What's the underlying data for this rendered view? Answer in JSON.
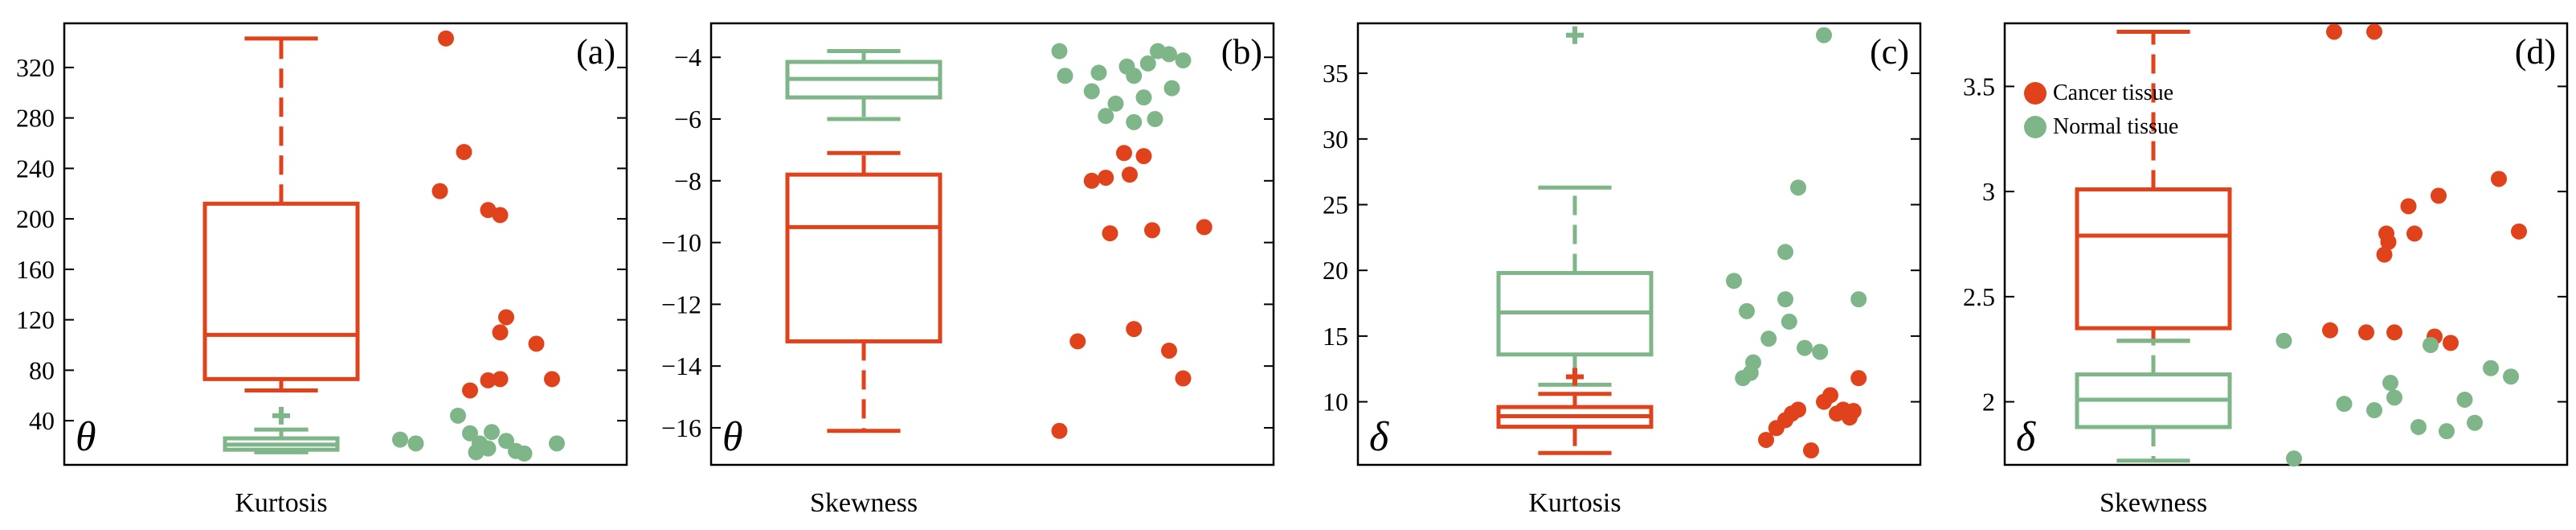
{
  "colors": {
    "cancer": "#E0421B",
    "normal": "#7FB689",
    "axis": "#000000"
  },
  "chart_data": [
    {
      "type": "box+scatter",
      "panel_label": "(a)",
      "xlabel": "Kurtosis",
      "ylabel": "θ",
      "ylim": [
        5,
        355
      ],
      "yticks": [
        40,
        80,
        120,
        160,
        200,
        240,
        280,
        320
      ],
      "boxes": [
        {
          "series": "Cancer tissue",
          "whisker_low": 64,
          "q1": 73,
          "median": 108,
          "q3": 212,
          "whisker_high": 343,
          "outliers": []
        },
        {
          "series": "Normal tissue",
          "whisker_low": 15,
          "q1": 17,
          "median": 21,
          "q3": 26,
          "whisker_high": 33,
          "outliers": [
            44
          ]
        }
      ],
      "scatter": {
        "Cancer tissue": [
          [
            0.1,
            343
          ],
          [
            0.25,
            253
          ],
          [
            0.05,
            222
          ],
          [
            0.45,
            207
          ],
          [
            0.55,
            203
          ],
          [
            0.6,
            122
          ],
          [
            0.55,
            110
          ],
          [
            0.85,
            101
          ],
          [
            0.45,
            72
          ],
          [
            0.55,
            73
          ],
          [
            0.98,
            73
          ],
          [
            0.3,
            64
          ]
        ],
        "Normal tissue": [
          [
            -0.28,
            25
          ],
          [
            -0.15,
            22
          ],
          [
            0.2,
            44
          ],
          [
            0.3,
            30
          ],
          [
            0.38,
            22
          ],
          [
            0.48,
            31
          ],
          [
            0.6,
            24
          ],
          [
            0.68,
            16
          ],
          [
            0.75,
            14
          ],
          [
            0.45,
            18
          ],
          [
            1.02,
            22
          ],
          [
            0.35,
            15
          ]
        ]
      }
    },
    {
      "type": "box+scatter",
      "panel_label": "(b)",
      "xlabel": "Skewness",
      "ylabel": "θ",
      "ylim": [
        -17.2,
        -2.9
      ],
      "yticks": [
        -16,
        -14,
        -12,
        -10,
        -8,
        -6,
        -4
      ],
      "boxes": [
        {
          "series": "Normal tissue",
          "whisker_low": -6.0,
          "q1": -5.3,
          "median": -4.7,
          "q3": -4.15,
          "whisker_high": -3.8,
          "outliers": []
        },
        {
          "series": "Cancer tissue",
          "whisker_low": -16.1,
          "q1": -13.2,
          "median": -9.5,
          "q3": -7.8,
          "whisker_high": -7.1,
          "outliers": []
        }
      ],
      "scatter": {
        "Normal tissue": [
          [
            0.02,
            -3.8
          ],
          [
            0.06,
            -4.6
          ],
          [
            0.25,
            -5.1
          ],
          [
            0.3,
            -4.5
          ],
          [
            0.42,
            -5.5
          ],
          [
            0.35,
            -5.9
          ],
          [
            0.5,
            -4.3
          ],
          [
            0.55,
            -4.6
          ],
          [
            0.65,
            -4.2
          ],
          [
            0.62,
            -5.3
          ],
          [
            0.72,
            -3.8
          ],
          [
            0.8,
            -3.9
          ],
          [
            0.9,
            -4.1
          ],
          [
            0.7,
            -6.0
          ],
          [
            0.82,
            -5.0
          ],
          [
            0.55,
            -6.1
          ]
        ],
        "Cancer tissue": [
          [
            0.02,
            -16.1
          ],
          [
            0.15,
            -13.2
          ],
          [
            0.25,
            -8.0
          ],
          [
            0.35,
            -7.9
          ],
          [
            0.38,
            -9.7
          ],
          [
            0.48,
            -7.1
          ],
          [
            0.52,
            -7.8
          ],
          [
            0.55,
            -12.8
          ],
          [
            0.62,
            -7.2
          ],
          [
            0.68,
            -9.6
          ],
          [
            0.8,
            -13.5
          ],
          [
            0.9,
            -14.4
          ],
          [
            1.05,
            -9.5
          ]
        ]
      }
    },
    {
      "type": "box+scatter",
      "panel_label": "(c)",
      "xlabel": "Kurtosis",
      "ylabel": "δ",
      "ylim": [
        5.2,
        38.8
      ],
      "yticks": [
        10,
        15,
        20,
        25,
        30,
        35
      ],
      "boxes": [
        {
          "series": "Normal tissue",
          "whisker_low": 11.3,
          "q1": 13.6,
          "median": 16.8,
          "q3": 19.8,
          "whisker_high": 26.3,
          "outliers": [
            37.9
          ]
        },
        {
          "series": "Cancer tissue",
          "whisker_low": 6.1,
          "q1": 8.1,
          "median": 8.9,
          "q3": 9.6,
          "whisker_high": 10.6,
          "outliers": [
            11.9
          ]
        }
      ],
      "scatter": {
        "Normal tissue": [
          [
            0.05,
            19.2
          ],
          [
            0.12,
            11.8
          ],
          [
            0.15,
            16.9
          ],
          [
            0.18,
            12.2
          ],
          [
            0.2,
            13.0
          ],
          [
            0.32,
            14.8
          ],
          [
            0.45,
            21.4
          ],
          [
            0.45,
            17.8
          ],
          [
            0.48,
            16.1
          ],
          [
            0.55,
            26.3
          ],
          [
            0.6,
            14.1
          ],
          [
            0.72,
            13.8
          ],
          [
            0.75,
            37.9
          ],
          [
            1.02,
            17.8
          ]
        ],
        "Cancer tissue": [
          [
            0.3,
            7.1
          ],
          [
            0.38,
            8.0
          ],
          [
            0.45,
            8.6
          ],
          [
            0.5,
            9.1
          ],
          [
            0.55,
            9.4
          ],
          [
            0.65,
            6.3
          ],
          [
            0.75,
            10.0
          ],
          [
            0.8,
            10.5
          ],
          [
            0.85,
            9.1
          ],
          [
            0.9,
            9.4
          ],
          [
            0.95,
            8.8
          ],
          [
            0.98,
            9.3
          ],
          [
            1.02,
            11.8
          ]
        ]
      }
    },
    {
      "type": "box+scatter",
      "panel_label": "(d)",
      "xlabel": "Skewness",
      "ylabel": "δ",
      "ylim": [
        1.7,
        3.8
      ],
      "yticks": [
        2,
        2.5,
        3,
        3.5
      ],
      "legend": {
        "position": "top-left",
        "entries": [
          "Cancer tissue",
          "Normal tissue"
        ]
      },
      "boxes": [
        {
          "series": "Cancer tissue",
          "whisker_low": 2.29,
          "q1": 2.35,
          "median": 2.79,
          "q3": 3.01,
          "whisker_high": 3.76,
          "outliers": []
        },
        {
          "series": "Normal tissue",
          "whisker_low": 1.72,
          "q1": 1.88,
          "median": 2.01,
          "q3": 2.13,
          "whisker_high": 2.29,
          "outliers": []
        }
      ],
      "scatter": {
        "Cancer tissue": [
          [
            0.1,
            3.76
          ],
          [
            0.3,
            3.76
          ],
          [
            0.08,
            2.34
          ],
          [
            0.26,
            2.33
          ],
          [
            0.35,
            2.7
          ],
          [
            0.36,
            2.8
          ],
          [
            0.37,
            2.76
          ],
          [
            0.4,
            2.33
          ],
          [
            0.47,
            2.93
          ],
          [
            0.5,
            2.8
          ],
          [
            0.6,
            2.31
          ],
          [
            0.62,
            2.98
          ],
          [
            0.68,
            2.28
          ],
          [
            0.92,
            3.06
          ],
          [
            1.02,
            2.81
          ]
        ],
        "Normal tissue": [
          [
            -0.15,
            2.29
          ],
          [
            -0.1,
            1.73
          ],
          [
            0.15,
            1.99
          ],
          [
            0.3,
            1.96
          ],
          [
            0.38,
            2.09
          ],
          [
            0.4,
            2.02
          ],
          [
            0.52,
            1.88
          ],
          [
            0.58,
            2.27
          ],
          [
            0.66,
            1.86
          ],
          [
            0.75,
            2.01
          ],
          [
            0.8,
            1.9
          ],
          [
            0.88,
            2.16
          ],
          [
            0.98,
            2.12
          ]
        ]
      }
    }
  ]
}
